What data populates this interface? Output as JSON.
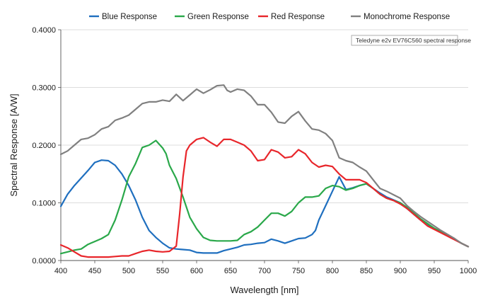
{
  "chart_data": {
    "type": "line",
    "annotation": "Teledyne e2v EV76C560 spectral response",
    "xlabel": "Wavelength [nm]",
    "ylabel": "Spectral Response [A/W]",
    "xlim": [
      400,
      1000
    ],
    "ylim": [
      0,
      0.4
    ],
    "x_ticks": [
      "400",
      "450",
      "500",
      "550",
      "600",
      "650",
      "700",
      "750",
      "800",
      "850",
      "900",
      "950",
      "1000"
    ],
    "y_ticks": [
      "0.0000",
      "0.1000",
      "0.2000",
      "0.3000",
      "0.4000"
    ],
    "grid": "horizontal",
    "legend_position": "top",
    "series": [
      {
        "name": "Blue Response",
        "color": "#1f6fbf",
        "points": [
          [
            400,
            0.094
          ],
          [
            410,
            0.115
          ],
          [
            420,
            0.13
          ],
          [
            430,
            0.143
          ],
          [
            440,
            0.156
          ],
          [
            450,
            0.17
          ],
          [
            460,
            0.174
          ],
          [
            470,
            0.173
          ],
          [
            480,
            0.165
          ],
          [
            490,
            0.15
          ],
          [
            500,
            0.13
          ],
          [
            510,
            0.105
          ],
          [
            520,
            0.075
          ],
          [
            530,
            0.052
          ],
          [
            540,
            0.04
          ],
          [
            550,
            0.03
          ],
          [
            560,
            0.022
          ],
          [
            570,
            0.02
          ],
          [
            580,
            0.019
          ],
          [
            590,
            0.018
          ],
          [
            600,
            0.014
          ],
          [
            610,
            0.013
          ],
          [
            620,
            0.013
          ],
          [
            630,
            0.013
          ],
          [
            640,
            0.017
          ],
          [
            650,
            0.02
          ],
          [
            660,
            0.023
          ],
          [
            670,
            0.027
          ],
          [
            680,
            0.028
          ],
          [
            690,
            0.03
          ],
          [
            700,
            0.031
          ],
          [
            710,
            0.037
          ],
          [
            720,
            0.034
          ],
          [
            730,
            0.03
          ],
          [
            740,
            0.034
          ],
          [
            750,
            0.038
          ],
          [
            760,
            0.039
          ],
          [
            770,
            0.045
          ],
          [
            775,
            0.052
          ],
          [
            780,
            0.07
          ],
          [
            790,
            0.095
          ],
          [
            800,
            0.12
          ],
          [
            810,
            0.145
          ],
          [
            820,
            0.123
          ],
          [
            830,
            0.126
          ],
          [
            840,
            0.13
          ],
          [
            850,
            0.133
          ],
          [
            860,
            0.125
          ],
          [
            870,
            0.117
          ],
          [
            880,
            0.11
          ],
          [
            890,
            0.105
          ],
          [
            900,
            0.1
          ],
          [
            910,
            0.09
          ],
          [
            920,
            0.08
          ],
          [
            930,
            0.07
          ],
          [
            940,
            0.063
          ],
          [
            950,
            0.055
          ],
          [
            960,
            0.049
          ],
          [
            970,
            0.043
          ],
          [
            980,
            0.037
          ],
          [
            990,
            0.03
          ],
          [
            1000,
            0.024
          ]
        ]
      },
      {
        "name": "Green Response",
        "color": "#2aa84a",
        "points": [
          [
            400,
            0.012
          ],
          [
            410,
            0.015
          ],
          [
            420,
            0.018
          ],
          [
            430,
            0.02
          ],
          [
            440,
            0.028
          ],
          [
            450,
            0.033
          ],
          [
            460,
            0.038
          ],
          [
            470,
            0.045
          ],
          [
            480,
            0.07
          ],
          [
            490,
            0.105
          ],
          [
            500,
            0.145
          ],
          [
            510,
            0.168
          ],
          [
            520,
            0.196
          ],
          [
            530,
            0.2
          ],
          [
            540,
            0.208
          ],
          [
            550,
            0.195
          ],
          [
            555,
            0.185
          ],
          [
            560,
            0.165
          ],
          [
            570,
            0.142
          ],
          [
            580,
            0.11
          ],
          [
            590,
            0.075
          ],
          [
            600,
            0.055
          ],
          [
            610,
            0.04
          ],
          [
            620,
            0.035
          ],
          [
            630,
            0.034
          ],
          [
            640,
            0.034
          ],
          [
            650,
            0.034
          ],
          [
            660,
            0.035
          ],
          [
            670,
            0.045
          ],
          [
            680,
            0.05
          ],
          [
            690,
            0.058
          ],
          [
            700,
            0.07
          ],
          [
            710,
            0.082
          ],
          [
            720,
            0.082
          ],
          [
            730,
            0.077
          ],
          [
            740,
            0.085
          ],
          [
            750,
            0.1
          ],
          [
            760,
            0.11
          ],
          [
            770,
            0.11
          ],
          [
            780,
            0.112
          ],
          [
            790,
            0.125
          ],
          [
            800,
            0.13
          ],
          [
            810,
            0.128
          ],
          [
            820,
            0.122
          ],
          [
            830,
            0.125
          ],
          [
            840,
            0.13
          ],
          [
            850,
            0.133
          ],
          [
            860,
            0.125
          ],
          [
            870,
            0.115
          ],
          [
            880,
            0.108
          ],
          [
            890,
            0.104
          ],
          [
            900,
            0.1
          ],
          [
            910,
            0.092
          ],
          [
            920,
            0.082
          ],
          [
            930,
            0.072
          ],
          [
            940,
            0.064
          ],
          [
            950,
            0.056
          ],
          [
            960,
            0.05
          ],
          [
            970,
            0.044
          ],
          [
            980,
            0.037
          ],
          [
            990,
            0.03
          ],
          [
            1000,
            0.024
          ]
        ]
      },
      {
        "name": "Red Response",
        "color": "#e8262b",
        "points": [
          [
            400,
            0.027
          ],
          [
            410,
            0.022
          ],
          [
            420,
            0.015
          ],
          [
            430,
            0.008
          ],
          [
            440,
            0.006
          ],
          [
            450,
            0.006
          ],
          [
            460,
            0.006
          ],
          [
            470,
            0.006
          ],
          [
            480,
            0.007
          ],
          [
            490,
            0.008
          ],
          [
            500,
            0.008
          ],
          [
            510,
            0.012
          ],
          [
            520,
            0.016
          ],
          [
            530,
            0.018
          ],
          [
            540,
            0.016
          ],
          [
            550,
            0.015
          ],
          [
            560,
            0.016
          ],
          [
            570,
            0.025
          ],
          [
            575,
            0.08
          ],
          [
            580,
            0.145
          ],
          [
            585,
            0.19
          ],
          [
            590,
            0.2
          ],
          [
            600,
            0.21
          ],
          [
            610,
            0.213
          ],
          [
            620,
            0.205
          ],
          [
            630,
            0.198
          ],
          [
            640,
            0.21
          ],
          [
            650,
            0.21
          ],
          [
            660,
            0.205
          ],
          [
            670,
            0.2
          ],
          [
            680,
            0.19
          ],
          [
            690,
            0.173
          ],
          [
            700,
            0.175
          ],
          [
            710,
            0.192
          ],
          [
            720,
            0.188
          ],
          [
            730,
            0.178
          ],
          [
            740,
            0.18
          ],
          [
            750,
            0.192
          ],
          [
            760,
            0.185
          ],
          [
            770,
            0.17
          ],
          [
            780,
            0.162
          ],
          [
            790,
            0.165
          ],
          [
            800,
            0.163
          ],
          [
            810,
            0.15
          ],
          [
            820,
            0.14
          ],
          [
            830,
            0.14
          ],
          [
            840,
            0.14
          ],
          [
            850,
            0.135
          ],
          [
            860,
            0.125
          ],
          [
            870,
            0.115
          ],
          [
            880,
            0.108
          ],
          [
            890,
            0.104
          ],
          [
            900,
            0.098
          ],
          [
            910,
            0.09
          ],
          [
            920,
            0.08
          ],
          [
            930,
            0.07
          ],
          [
            940,
            0.06
          ],
          [
            950,
            0.054
          ],
          [
            960,
            0.048
          ],
          [
            970,
            0.042
          ],
          [
            980,
            0.036
          ],
          [
            990,
            0.03
          ],
          [
            1000,
            0.024
          ]
        ]
      },
      {
        "name": "Monochrome Response",
        "color": "#808080",
        "points": [
          [
            400,
            0.184
          ],
          [
            410,
            0.19
          ],
          [
            420,
            0.2
          ],
          [
            430,
            0.21
          ],
          [
            440,
            0.212
          ],
          [
            450,
            0.218
          ],
          [
            460,
            0.228
          ],
          [
            470,
            0.232
          ],
          [
            480,
            0.243
          ],
          [
            490,
            0.247
          ],
          [
            500,
            0.252
          ],
          [
            510,
            0.262
          ],
          [
            520,
            0.272
          ],
          [
            530,
            0.275
          ],
          [
            540,
            0.275
          ],
          [
            550,
            0.278
          ],
          [
            560,
            0.276
          ],
          [
            570,
            0.288
          ],
          [
            580,
            0.277
          ],
          [
            590,
            0.287
          ],
          [
            600,
            0.297
          ],
          [
            610,
            0.29
          ],
          [
            620,
            0.296
          ],
          [
            630,
            0.303
          ],
          [
            640,
            0.304
          ],
          [
            645,
            0.295
          ],
          [
            650,
            0.292
          ],
          [
            660,
            0.297
          ],
          [
            670,
            0.295
          ],
          [
            680,
            0.285
          ],
          [
            690,
            0.27
          ],
          [
            700,
            0.27
          ],
          [
            710,
            0.257
          ],
          [
            720,
            0.24
          ],
          [
            730,
            0.238
          ],
          [
            740,
            0.25
          ],
          [
            750,
            0.258
          ],
          [
            760,
            0.242
          ],
          [
            770,
            0.228
          ],
          [
            780,
            0.226
          ],
          [
            790,
            0.22
          ],
          [
            800,
            0.208
          ],
          [
            810,
            0.178
          ],
          [
            820,
            0.173
          ],
          [
            830,
            0.17
          ],
          [
            840,
            0.162
          ],
          [
            850,
            0.155
          ],
          [
            860,
            0.14
          ],
          [
            870,
            0.125
          ],
          [
            880,
            0.12
          ],
          [
            890,
            0.114
          ],
          [
            900,
            0.108
          ],
          [
            910,
            0.095
          ],
          [
            920,
            0.085
          ],
          [
            930,
            0.076
          ],
          [
            940,
            0.068
          ],
          [
            950,
            0.06
          ],
          [
            960,
            0.052
          ],
          [
            970,
            0.045
          ],
          [
            980,
            0.038
          ],
          [
            990,
            0.03
          ],
          [
            1000,
            0.024
          ]
        ]
      }
    ]
  }
}
